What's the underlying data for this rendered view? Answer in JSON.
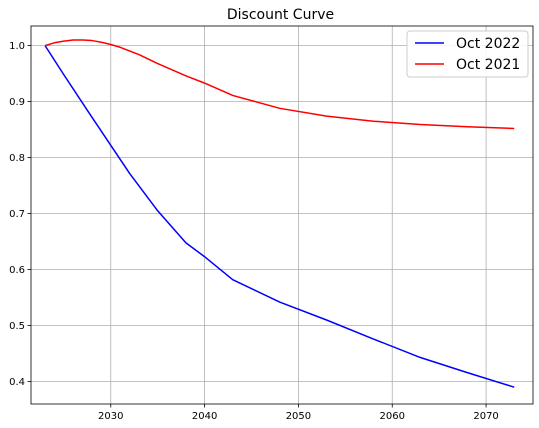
{
  "chart_data": {
    "type": "line",
    "title": "Discount Curve",
    "xlabel": "",
    "ylabel": "",
    "xlim": [
      2021.5,
      2075.0
    ],
    "ylim": [
      0.36,
      1.035
    ],
    "xticks": [
      2030,
      2040,
      2050,
      2060,
      2070
    ],
    "yticks": [
      0.4,
      0.5,
      0.6,
      0.7,
      0.8,
      0.9,
      1.0
    ],
    "grid": true,
    "legend_position": "top-right",
    "series": [
      {
        "name": "Oct 2022",
        "color": "#0000ff",
        "x": [
          2023,
          2025,
          2028,
          2030,
          2032,
          2035,
          2038,
          2040,
          2043,
          2048,
          2053,
          2058,
          2063,
          2068,
          2073
        ],
        "y": [
          1.0,
          0.948,
          0.872,
          0.822,
          0.772,
          0.705,
          0.648,
          0.623,
          0.582,
          0.542,
          0.51,
          0.476,
          0.443,
          0.416,
          0.39
        ]
      },
      {
        "name": "Oct 2021",
        "color": "#ff0000",
        "x": [
          2023,
          2024,
          2025,
          2026,
          2027,
          2028,
          2029,
          2030,
          2031,
          2033,
          2035,
          2038,
          2040,
          2043,
          2048,
          2053,
          2058,
          2063,
          2068,
          2073
        ],
        "y": [
          1.0,
          1.005,
          1.008,
          1.01,
          1.01,
          1.009,
          1.006,
          1.002,
          0.997,
          0.984,
          0.968,
          0.946,
          0.933,
          0.911,
          0.888,
          0.874,
          0.865,
          0.859,
          0.855,
          0.852
        ]
      }
    ]
  }
}
